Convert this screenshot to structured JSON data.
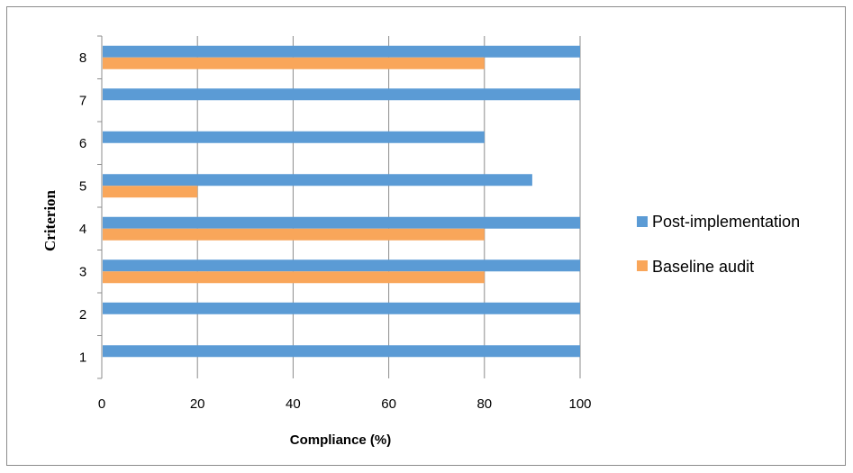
{
  "chart_data": {
    "type": "bar",
    "orientation": "horizontal",
    "categories": [
      "1",
      "2",
      "3",
      "4",
      "5",
      "6",
      "7",
      "8"
    ],
    "series": [
      {
        "name": "Post-implementation",
        "color": "#5b9bd5",
        "values": [
          100,
          100,
          100,
          100,
          90,
          80,
          100,
          100
        ]
      },
      {
        "name": "Baseline audit",
        "color": "#f9a65a",
        "values": [
          0,
          0,
          80,
          80,
          20,
          0,
          0,
          80
        ]
      }
    ],
    "xlabel": "Compliance (%)",
    "ylabel": "Criterion",
    "xlim": [
      0,
      100
    ],
    "xticks": [
      "0",
      "20",
      "40",
      "60",
      "80",
      "100"
    ],
    "grid": "vertical",
    "legend_position": "right"
  }
}
